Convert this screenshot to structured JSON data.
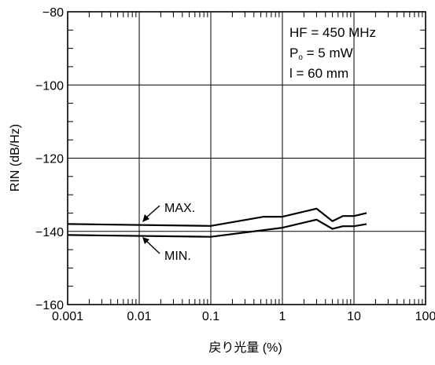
{
  "chart_data": {
    "type": "line",
    "title": "",
    "xlabel": "戻り光量 (%)",
    "ylabel": "RIN (dB/Hz)",
    "x_scale": "log",
    "xlim": [
      0.001,
      100
    ],
    "ylim": [
      -160,
      -80
    ],
    "x_ticks": [
      "0.001",
      "0.01",
      "0.1",
      "1",
      "10",
      "100"
    ],
    "y_ticks": [
      "−80",
      "−100",
      "−120",
      "−140",
      "−160"
    ],
    "grid": true,
    "annotations": {
      "hf": "HF = 450 MHz",
      "po_main": "P",
      "po_sub": "o",
      "po_rest": " = 5 mW",
      "l": "l = 60 mm"
    },
    "series": [
      {
        "name": "MAX.",
        "x": [
          0.001,
          0.1,
          0.55,
          1,
          3,
          5,
          7,
          10,
          15
        ],
        "y": [
          -138,
          -138.5,
          -136,
          -136,
          -133.8,
          -137.2,
          -135.8,
          -135.8,
          -135
        ]
      },
      {
        "name": "MIN.",
        "x": [
          0.001,
          0.1,
          1,
          3,
          5,
          7,
          10,
          15
        ],
        "y": [
          -141,
          -141.5,
          -139,
          -136.8,
          -139.3,
          -138.6,
          -138.6,
          -138
        ]
      }
    ]
  }
}
